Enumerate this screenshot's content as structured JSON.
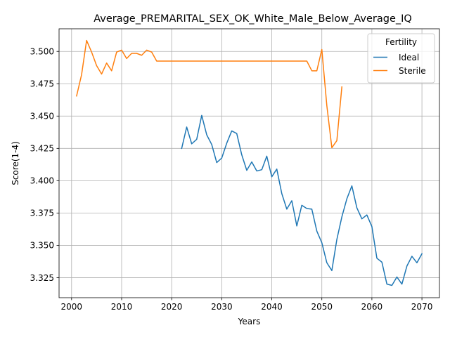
{
  "chart_data": {
    "type": "line",
    "title": "Average_PREMARITAL_SEX_OK_White_Male_Below_Average_IQ",
    "xlabel": "Years",
    "ylabel": "Score(1-4)",
    "xlim": [
      1997.5,
      2073.5
    ],
    "ylim": [
      3.3095,
      3.5175
    ],
    "x_ticks": [
      2000,
      2010,
      2020,
      2030,
      2040,
      2050,
      2060,
      2070
    ],
    "y_ticks": [
      3.325,
      3.35,
      3.375,
      3.4,
      3.425,
      3.45,
      3.475,
      3.5
    ],
    "grid": true,
    "legend": {
      "title": "Fertility",
      "placement": "top-right"
    },
    "series": [
      {
        "name": "Ideal",
        "color": "#1f77b4",
        "x": [
          2022,
          2023,
          2024,
          2025,
          2026,
          2027,
          2028,
          2029,
          2030,
          2031,
          2032,
          2033,
          2034,
          2035,
          2036,
          2037,
          2038,
          2039,
          2040,
          2041,
          2042,
          2043,
          2044,
          2045,
          2046,
          2047,
          2048,
          2049,
          2050,
          2051,
          2052,
          2053,
          2054,
          2055,
          2056,
          2057,
          2058,
          2059,
          2060,
          2061,
          2062,
          2063,
          2064,
          2065,
          2066,
          2067,
          2068,
          2069,
          2070
        ],
        "y": [
          3.425,
          3.4415,
          3.4285,
          3.432,
          3.4505,
          3.4355,
          3.428,
          3.414,
          3.4175,
          3.429,
          3.4385,
          3.4365,
          3.42,
          3.408,
          3.4145,
          3.4075,
          3.4085,
          3.419,
          3.403,
          3.409,
          3.39,
          3.378,
          3.3845,
          3.365,
          3.381,
          3.3785,
          3.378,
          3.361,
          3.352,
          3.3365,
          3.3305,
          3.3545,
          3.372,
          3.386,
          3.396,
          3.379,
          3.3705,
          3.3735,
          3.3645,
          3.34,
          3.337,
          3.32,
          3.319,
          3.3255,
          3.32,
          3.334,
          3.3415,
          3.3365,
          3.3435
        ]
      },
      {
        "name": "Sterile",
        "color": "#ff7f0e",
        "x": [
          2001,
          2002,
          2003,
          2004,
          2005,
          2006,
          2007,
          2008,
          2009,
          2010,
          2011,
          2012,
          2013,
          2014,
          2015,
          2016,
          2017,
          2018,
          2019,
          2020,
          2021,
          2022,
          2023,
          2024,
          2025,
          2026,
          2027,
          2028,
          2029,
          2030,
          2031,
          2032,
          2033,
          2034,
          2035,
          2036,
          2037,
          2038,
          2039,
          2040,
          2041,
          2042,
          2043,
          2044,
          2045,
          2046,
          2047,
          2048,
          2049,
          2050,
          2051,
          2052,
          2053,
          2054
        ],
        "y": [
          3.4655,
          3.482,
          3.5085,
          3.4995,
          3.489,
          3.4825,
          3.491,
          3.485,
          3.4995,
          3.501,
          3.4945,
          3.4985,
          3.4985,
          3.497,
          3.501,
          3.4995,
          3.4925,
          3.4925,
          3.4925,
          3.4925,
          3.4925,
          3.4925,
          3.4925,
          3.4925,
          3.4925,
          3.4925,
          3.4925,
          3.4925,
          3.4925,
          3.4925,
          3.4925,
          3.4925,
          3.4925,
          3.4925,
          3.4925,
          3.4925,
          3.4925,
          3.4925,
          3.4925,
          3.4925,
          3.4925,
          3.4925,
          3.4925,
          3.4925,
          3.4925,
          3.4925,
          3.4925,
          3.485,
          3.485,
          3.5015,
          3.458,
          3.4255,
          3.431,
          3.4725
        ]
      }
    ]
  }
}
